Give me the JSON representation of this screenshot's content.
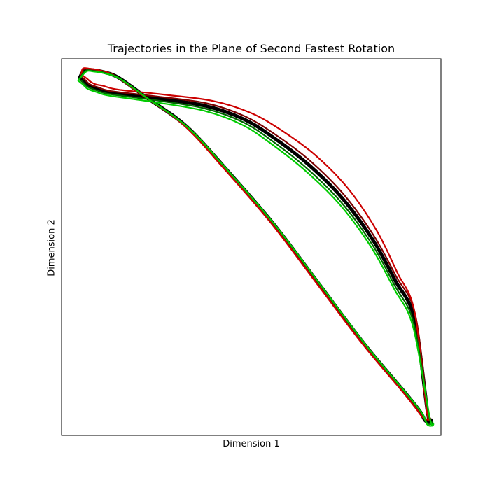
{
  "chart_data": {
    "type": "line",
    "title": "Trajectories in the Plane of Second Fastest Rotation",
    "xlabel": "Dimension 1",
    "ylabel": "Dimension 2",
    "xlim": [
      0,
      1
    ],
    "ylim": [
      0,
      1
    ],
    "x_ticks": [],
    "y_ticks": [],
    "grid": false,
    "legend": "none",
    "colors": {
      "red": "#cc0000",
      "darkred": "#7a0000",
      "green": "#00cc00",
      "darkgreen": "#006400",
      "black": "#000000"
    },
    "series": [
      {
        "color": "#000000",
        "x": [
          0.048,
          0.06,
          0.07,
          0.08,
          0.095,
          0.13,
          0.25,
          0.38,
          0.48,
          0.56,
          0.65,
          0.74,
          0.82,
          0.88,
          0.93,
          0.965,
          0.975,
          0.968,
          0.958,
          0.95,
          0.94,
          0.9,
          0.8,
          0.68,
          0.56,
          0.44,
          0.33,
          0.22,
          0.15,
          0.11,
          0.08,
          0.06,
          0.048
        ],
        "y": [
          0.95,
          0.94,
          0.93,
          0.925,
          0.92,
          0.91,
          0.895,
          0.875,
          0.84,
          0.79,
          0.72,
          0.63,
          0.52,
          0.41,
          0.31,
          0.06,
          0.04,
          0.035,
          0.04,
          0.055,
          0.07,
          0.12,
          0.24,
          0.4,
          0.56,
          0.7,
          0.82,
          0.9,
          0.95,
          0.965,
          0.97,
          0.97,
          0.95
        ]
      },
      {
        "color": "#7a0000",
        "x": [
          0.05,
          0.062,
          0.072,
          0.082,
          0.097,
          0.132,
          0.252,
          0.382,
          0.482,
          0.562,
          0.652,
          0.742,
          0.822,
          0.882,
          0.932,
          0.965,
          0.972,
          0.965,
          0.955,
          0.945,
          0.935,
          0.895,
          0.795,
          0.675,
          0.555,
          0.435,
          0.325,
          0.215,
          0.145,
          0.105,
          0.075,
          0.058,
          0.05
        ],
        "y": [
          0.954,
          0.944,
          0.934,
          0.929,
          0.924,
          0.914,
          0.9,
          0.882,
          0.848,
          0.8,
          0.732,
          0.642,
          0.532,
          0.422,
          0.322,
          0.065,
          0.045,
          0.04,
          0.045,
          0.058,
          0.072,
          0.122,
          0.242,
          0.402,
          0.562,
          0.702,
          0.822,
          0.902,
          0.952,
          0.967,
          0.972,
          0.972,
          0.954
        ]
      },
      {
        "color": "#cc0000",
        "x": [
          0.052,
          0.066,
          0.078,
          0.09,
          0.11,
          0.15,
          0.27,
          0.4,
          0.5,
          0.58,
          0.668,
          0.755,
          0.83,
          0.885,
          0.93,
          0.962,
          0.97,
          0.962,
          0.952,
          0.942,
          0.932,
          0.892,
          0.792,
          0.672,
          0.552,
          0.432,
          0.322,
          0.212,
          0.142,
          0.102,
          0.072,
          0.056,
          0.052
        ],
        "y": [
          0.958,
          0.948,
          0.938,
          0.932,
          0.928,
          0.918,
          0.905,
          0.888,
          0.856,
          0.81,
          0.745,
          0.656,
          0.545,
          0.432,
          0.33,
          0.068,
          0.048,
          0.043,
          0.048,
          0.06,
          0.074,
          0.124,
          0.244,
          0.404,
          0.564,
          0.704,
          0.824,
          0.904,
          0.954,
          0.969,
          0.974,
          0.974,
          0.958
        ]
      },
      {
        "color": "#006400",
        "x": [
          0.046,
          0.058,
          0.068,
          0.078,
          0.093,
          0.128,
          0.248,
          0.378,
          0.478,
          0.558,
          0.648,
          0.738,
          0.818,
          0.878,
          0.928,
          0.968,
          0.978,
          0.971,
          0.961,
          0.953,
          0.943,
          0.903,
          0.803,
          0.683,
          0.563,
          0.443,
          0.333,
          0.223,
          0.153,
          0.113,
          0.083,
          0.063,
          0.046
        ],
        "y": [
          0.946,
          0.936,
          0.926,
          0.921,
          0.916,
          0.906,
          0.89,
          0.868,
          0.832,
          0.78,
          0.708,
          0.618,
          0.508,
          0.398,
          0.298,
          0.055,
          0.035,
          0.03,
          0.035,
          0.052,
          0.068,
          0.118,
          0.238,
          0.398,
          0.558,
          0.698,
          0.818,
          0.898,
          0.948,
          0.963,
          0.968,
          0.968,
          0.946
        ]
      },
      {
        "color": "#00cc00",
        "x": [
          0.044,
          0.056,
          0.066,
          0.076,
          0.091,
          0.126,
          0.246,
          0.376,
          0.476,
          0.556,
          0.646,
          0.736,
          0.816,
          0.876,
          0.926,
          0.97,
          0.98,
          0.973,
          0.963,
          0.955,
          0.945,
          0.905,
          0.805,
          0.685,
          0.565,
          0.445,
          0.335,
          0.225,
          0.155,
          0.115,
          0.085,
          0.065,
          0.044
        ],
        "y": [
          0.942,
          0.932,
          0.922,
          0.917,
          0.912,
          0.902,
          0.885,
          0.862,
          0.825,
          0.772,
          0.7,
          0.61,
          0.5,
          0.39,
          0.29,
          0.05,
          0.03,
          0.025,
          0.03,
          0.05,
          0.066,
          0.116,
          0.236,
          0.396,
          0.556,
          0.696,
          0.816,
          0.896,
          0.946,
          0.961,
          0.966,
          0.966,
          0.942
        ]
      }
    ]
  }
}
